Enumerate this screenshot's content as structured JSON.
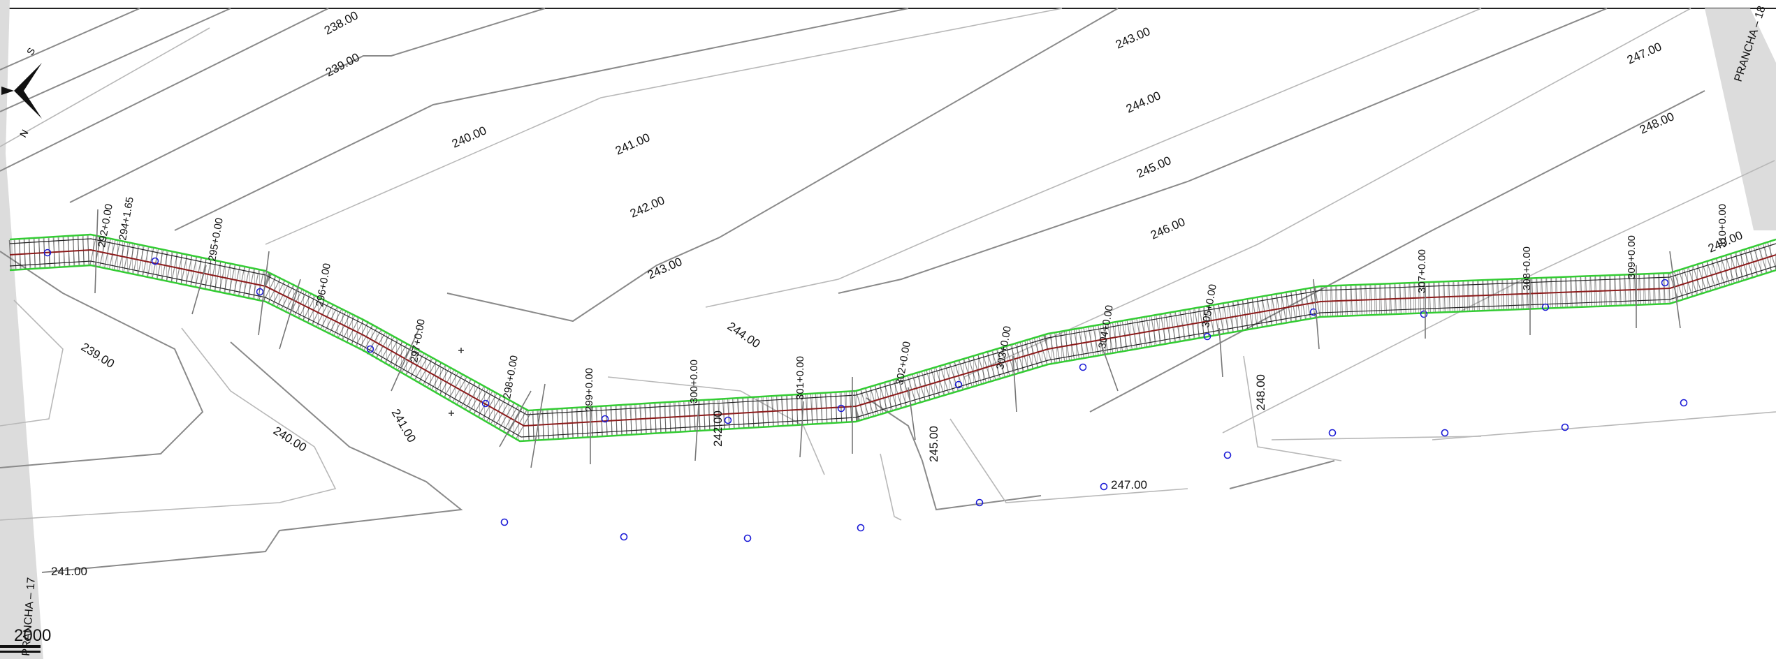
{
  "sheet": {
    "current_label": "PRANCHA – 17",
    "next_label": "PRANCHA – 18",
    "scale_value": "2000"
  },
  "contours": {
    "labels": [
      "238.00",
      "239.00",
      "240.00",
      "241.00",
      "242.00",
      "243.00",
      "244.00",
      "245.00",
      "246.00",
      "247.00",
      "248.00",
      "249.00",
      "239.00",
      "240.00",
      "241.00",
      "241.00",
      "242.00",
      "243.00",
      "244.00",
      "245.00",
      "247.00",
      "248.00",
      "247.00"
    ]
  },
  "stations": {
    "labels": [
      "292+0.00",
      "294+1.65",
      "295+0.00",
      "296+0.00",
      "297+0.00",
      "298+0.00",
      "299+0.00",
      "300+0.00",
      "301+0.00",
      "302+0.00",
      "303+0.00",
      "304+0.00",
      "305+0.00",
      "307+0.00",
      "308+0.00",
      "309+0.00",
      "310+0.00"
    ]
  },
  "colors": {
    "background": "#ffffff",
    "contour": "#8a8a8a",
    "alignment_edge": "#33cc33",
    "centerline": "#8b1a1a",
    "hatch": "#555555",
    "survey_point": "#1a1ad6",
    "sheet_border": "#d8d8d8"
  },
  "icons": {
    "north_arrow": "north-arrow-icon",
    "survey_point": "survey-point-icon"
  }
}
